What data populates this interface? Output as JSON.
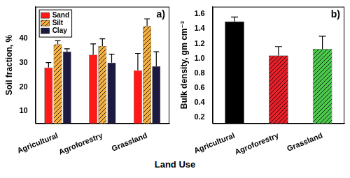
{
  "chart_data": [
    {
      "type": "bar",
      "title": "a)",
      "xlabel": "Land Use",
      "ylabel": "Soil fraction, %",
      "categories": [
        "Agricultural",
        "Agroforestry",
        "Grassland"
      ],
      "series": [
        {
          "name": "Sand",
          "color": "#ff1a1a",
          "values": [
            28,
            33.2,
            26.8
          ],
          "errors": [
            2,
            4.5,
            7
          ]
        },
        {
          "name": "Silt",
          "color": "#f5b041",
          "values": [
            37.5,
            36.8,
            45
          ],
          "errors": [
            1.5,
            3,
            3
          ]
        },
        {
          "name": "Clay",
          "color": "#1c1a40",
          "values": [
            34.5,
            30,
            28.5
          ],
          "errors": [
            1.2,
            3.5,
            6
          ]
        }
      ],
      "ylim": [
        5,
        53
      ],
      "yticks": [
        10,
        20,
        30,
        40
      ],
      "grid": false,
      "legend": "upper left"
    },
    {
      "type": "bar",
      "title": "b)",
      "ylabel": "Bulk density, gm cm⁻³",
      "categories": [
        "Agricultural",
        "Agroforestry",
        "Grassland"
      ],
      "values": [
        1.5,
        1.04,
        1.13
      ],
      "errors": [
        0.06,
        0.12,
        0.17
      ],
      "colors": [
        "#000000",
        "#e8202a",
        "#4cc94c"
      ],
      "ylim": [
        0.12,
        1.7
      ],
      "yticks": [
        0.2,
        0.4,
        0.6,
        0.8,
        {
          "value": 1,
          "label": "1.0"
        },
        1.2,
        1.4,
        1.6
      ],
      "grid": false
    }
  ]
}
